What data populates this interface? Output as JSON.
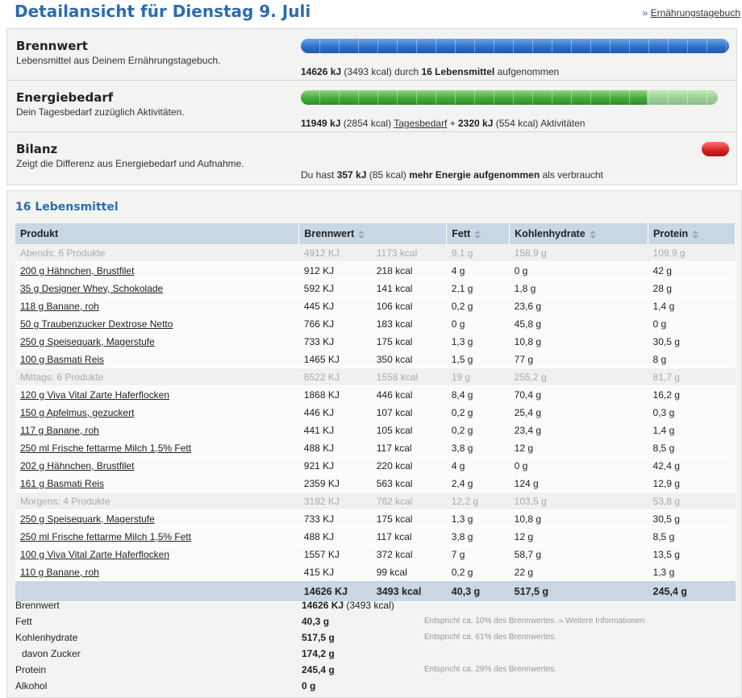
{
  "header": {
    "title": "Detailansicht für Dienstag 9. Juli",
    "link_arrow": "»",
    "link": "Ernährungstagebuch"
  },
  "summary": [
    {
      "title": "Brennwert",
      "subtitle": "Lebensmittel aus Deinem Ernährungstagebuch.",
      "detail": [
        "14626 kJ",
        "(3493 kcal) durch",
        "16 Lebensmittel",
        "aufgenommen"
      ]
    },
    {
      "title": "Energiebedarf",
      "subtitle": "Dein Tagesbedarf zuzüglich Aktivitäten.",
      "detail": [
        "11949 kJ",
        "(2854 kcal)",
        "Tagesbedarf",
        "+",
        "2320 kJ",
        "(554 kcal) Aktivitäten"
      ]
    },
    {
      "title": "Bilanz",
      "subtitle": "Zeigt die Differenz aus Energiebedarf und Aufnahme.",
      "detail": [
        "Du hast",
        "357 kJ",
        "(85 kcal)",
        "mehr Energie aufgenommen",
        "als verbraucht"
      ]
    }
  ],
  "table": {
    "title": "16 Lebensmittel",
    "headers": [
      "Produkt",
      "Brennwert",
      "Fett",
      "Kohlenhydrate",
      "Protein"
    ],
    "groups": [
      {
        "summary": [
          "Abends: 6 Produkte",
          "4912 KJ",
          "1173 kcal",
          "9,1 g",
          "158,9 g",
          "109,9 g"
        ],
        "items": [
          [
            "200 g Hähnchen, Brustfilet",
            "912 KJ",
            "218 kcal",
            "4 g",
            "0 g",
            "42 g"
          ],
          [
            "35 g Designer Whey, Schokolade",
            "592 KJ",
            "141 kcal",
            "2,1 g",
            "1,8 g",
            "28 g"
          ],
          [
            "118 g Banane, roh",
            "445 KJ",
            "106 kcal",
            "0,2 g",
            "23,6 g",
            "1,4 g"
          ],
          [
            "50 g Traubenzucker Dextrose Netto",
            "766 KJ",
            "183 kcal",
            "0 g",
            "45,8 g",
            "0 g"
          ],
          [
            "250 g Speisequark, Magerstufe",
            "733 KJ",
            "175 kcal",
            "1,3 g",
            "10,8 g",
            "30,5 g"
          ],
          [
            "100 g Basmati Reis",
            "1465 KJ",
            "350 kcal",
            "1,5 g",
            "77 g",
            "8 g"
          ]
        ]
      },
      {
        "summary": [
          "Mittags: 6 Produkte",
          "6522 KJ",
          "1558 kcal",
          "19 g",
          "255,2 g",
          "81,7 g"
        ],
        "items": [
          [
            "120 g Viva Vital Zarte Haferflocken",
            "1868 KJ",
            "446 kcal",
            "8,4 g",
            "70,4 g",
            "16,2 g"
          ],
          [
            "150 g Apfelmus, gezuckert",
            "446 KJ",
            "107 kcal",
            "0,2 g",
            "25,4 g",
            "0,3 g"
          ],
          [
            "117 g Banane, roh",
            "441 KJ",
            "105 kcal",
            "0,2 g",
            "23,4 g",
            "1,4 g"
          ],
          [
            "250 ml Frische fettarme Milch 1,5% Fett",
            "488 KJ",
            "117 kcal",
            "3,8 g",
            "12 g",
            "8,5 g"
          ],
          [
            "202 g Hähnchen, Brustfilet",
            "921 KJ",
            "220 kcal",
            "4 g",
            "0 g",
            "42,4 g"
          ],
          [
            "161 g Basmati Reis",
            "2359 KJ",
            "563 kcal",
            "2,4 g",
            "124 g",
            "12,9 g"
          ]
        ]
      },
      {
        "summary": [
          "Morgens: 4 Produkte",
          "3192 KJ",
          "762 kcal",
          "12,2 g",
          "103,5 g",
          "53,8 g"
        ],
        "items": [
          [
            "250 g Speisequark, Magerstufe",
            "733 KJ",
            "175 kcal",
            "1,3 g",
            "10,8 g",
            "30,5 g"
          ],
          [
            "250 ml Frische fettarme Milch 1,5% Fett",
            "488 KJ",
            "117 kcal",
            "3,8 g",
            "12 g",
            "8,5 g"
          ],
          [
            "100 g Viva Vital Zarte Haferflocken",
            "1557 KJ",
            "372 kcal",
            "7 g",
            "58,7 g",
            "13,5 g"
          ],
          [
            "110 g Banane, roh",
            "415 KJ",
            "99 kcal",
            "0,2 g",
            "22 g",
            "1,3 g"
          ]
        ]
      }
    ],
    "totals": [
      "14626 KJ",
      "3493 kcal",
      "40,3 g",
      "517,5 g",
      "245,4 g"
    ]
  },
  "nutrients": [
    {
      "label": "Brennwert",
      "value": "14626 KJ",
      "extra": "(3493 kcal)"
    },
    {
      "label": "Fett",
      "value": "40,3 g",
      "note": "Entspricht ca. 10% des Brennwertes.",
      "link": "» Weitere Informationen"
    },
    {
      "label": "Kohlenhydrate",
      "value": "517,5 g",
      "note": "Entspricht ca. 61% des Brennwertes."
    },
    {
      "label": "davon Zucker",
      "value": "174,2 g"
    },
    {
      "label": "Protein",
      "value": "245,4 g",
      "note": "Entspricht ca. 29% des Brennwertes."
    },
    {
      "label": "Alkohol",
      "value": "0 g"
    }
  ]
}
